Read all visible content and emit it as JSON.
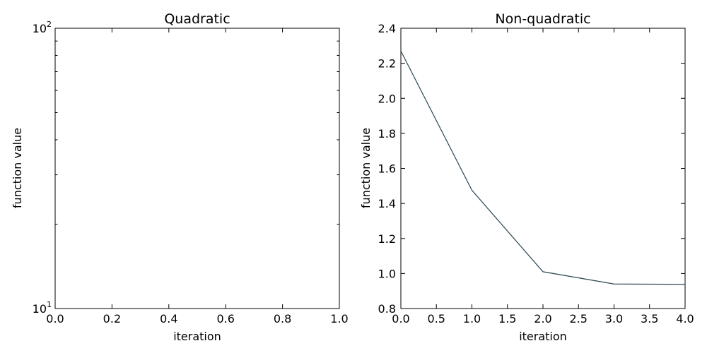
{
  "colors": {
    "series": "#2a4653"
  },
  "chart_data": [
    {
      "type": "line",
      "title": "Quadratic",
      "xlabel": "iteration",
      "ylabel": "function value",
      "xlim": [
        0,
        1
      ],
      "ylim": [
        10,
        100
      ],
      "yscale": "log",
      "xticks": [
        "0.0",
        "0.2",
        "0.4",
        "0.6",
        "0.8",
        "1.0"
      ],
      "yticks": [
        {
          "base": "10",
          "exp": "1"
        },
        {
          "base": "10",
          "exp": "2"
        }
      ],
      "grid": false,
      "series": []
    },
    {
      "type": "line",
      "title": "Non-quadratic",
      "xlabel": "iteration",
      "ylabel": "function value",
      "xlim": [
        0,
        4
      ],
      "ylim": [
        0.8,
        2.4
      ],
      "yscale": "linear",
      "xticks": [
        "0.0",
        "0.5",
        "1.0",
        "1.5",
        "2.0",
        "2.5",
        "3.0",
        "3.5",
        "4.0"
      ],
      "yticks": [
        "0.8",
        "1.0",
        "1.2",
        "1.4",
        "1.6",
        "1.8",
        "2.0",
        "2.2",
        "2.4"
      ],
      "grid": false,
      "series": [
        {
          "x": [
            0,
            1,
            2,
            3,
            4
          ],
          "y": [
            2.27,
            1.475,
            1.01,
            0.94,
            0.938
          ]
        }
      ]
    }
  ]
}
